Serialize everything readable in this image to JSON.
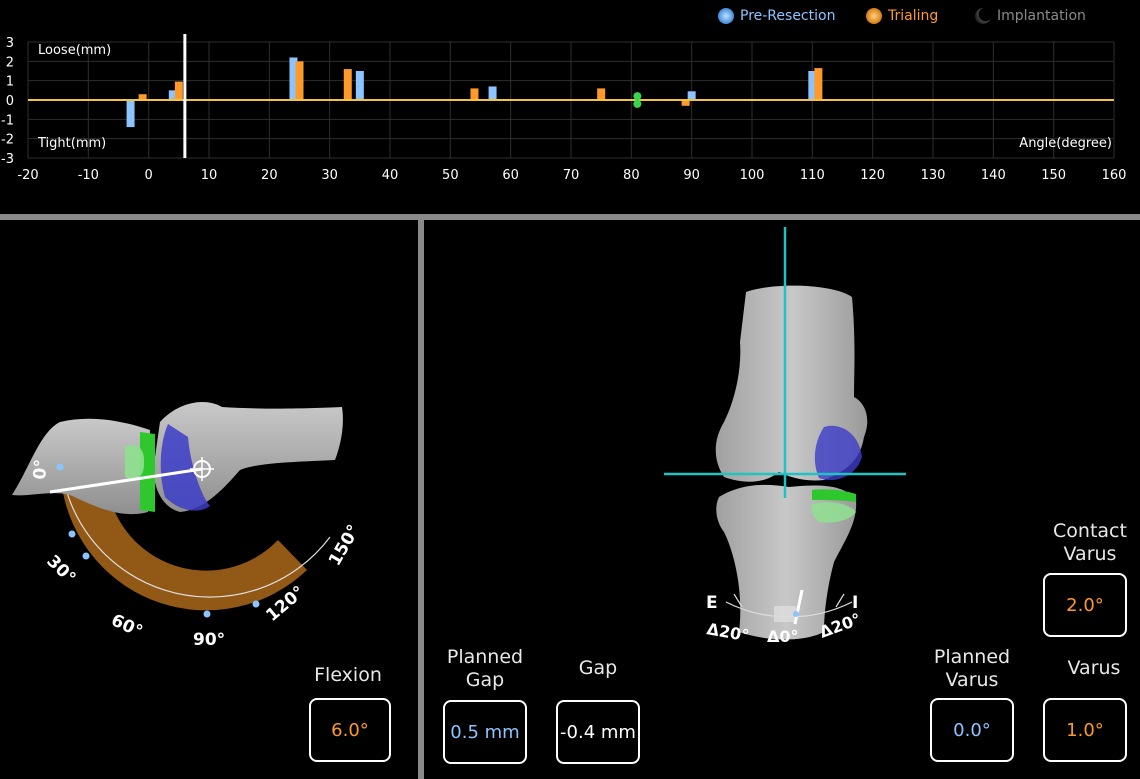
{
  "legend": {
    "items": [
      {
        "label": "Pre-Resection",
        "color": "#8cc4ff"
      },
      {
        "label": "Trialing",
        "color": "#ff9a2a"
      },
      {
        "label": "Implantation",
        "color": "#8a8a8a"
      }
    ]
  },
  "chart_data": {
    "type": "bar",
    "ylabel_top": "Loose(mm)",
    "ylabel_bottom": "Tight(mm)",
    "xlabel": "Angle(degree)",
    "xlim": [
      -20,
      160
    ],
    "ylim": [
      -3,
      3
    ],
    "x_ticks": [
      -20,
      -10,
      0,
      10,
      20,
      30,
      40,
      50,
      60,
      70,
      80,
      90,
      100,
      110,
      120,
      130,
      140,
      150,
      160
    ],
    "y_ticks": [
      3,
      2,
      1,
      0,
      -1,
      -2,
      -3
    ],
    "cursor_angle": 6.0,
    "series": [
      {
        "name": "Pre-Resection",
        "color": "#8cc4ff",
        "points": [
          {
            "x": -3,
            "y": -1.4
          },
          {
            "x": 4,
            "y": 0.5
          },
          {
            "x": 24,
            "y": 2.2
          },
          {
            "x": 35,
            "y": 1.5
          },
          {
            "x": 57,
            "y": 0.7
          },
          {
            "x": 90,
            "y": 0.45
          },
          {
            "x": 110,
            "y": 1.5
          }
        ]
      },
      {
        "name": "Trialing",
        "color": "#ff9a2a",
        "points": [
          {
            "x": -1,
            "y": 0.3
          },
          {
            "x": 5,
            "y": 0.95
          },
          {
            "x": 25,
            "y": 2.0
          },
          {
            "x": 33,
            "y": 1.6
          },
          {
            "x": 54,
            "y": 0.6
          },
          {
            "x": 75,
            "y": 0.6
          },
          {
            "x": 89,
            "y": -0.3
          },
          {
            "x": 111,
            "y": 1.65
          }
        ]
      }
    ],
    "markers": [
      {
        "x": 81,
        "y": 0.2,
        "color": "#34d84a"
      },
      {
        "x": 81,
        "y": -0.2,
        "color": "#34d84a"
      }
    ]
  },
  "flexion_gauge": {
    "ticks": [
      "0°",
      "30°",
      "60°",
      "90°",
      "120°",
      "150°"
    ],
    "current_angle": 6.0
  },
  "rotation_gauge": {
    "left_letter": "E",
    "right_letter": "I",
    "labels": [
      "Δ20°",
      "Δ0°",
      "Δ20°"
    ]
  },
  "panels": {
    "flexion": {
      "label": "Flexion",
      "value": "6.0°"
    },
    "planned_gap": {
      "label_line1": "Planned",
      "label_line2": "Gap",
      "value": "0.5 mm"
    },
    "gap": {
      "label": "Gap",
      "value": "-0.4 mm"
    },
    "planned_varus": {
      "label_line1": "Planned",
      "label_line2": "Varus",
      "value": "0.0°"
    },
    "varus": {
      "label": "Varus",
      "value": "1.0°"
    },
    "contact_varus": {
      "label_line1": "Contact",
      "label_line2": "Varus",
      "value": "2.0°"
    }
  }
}
